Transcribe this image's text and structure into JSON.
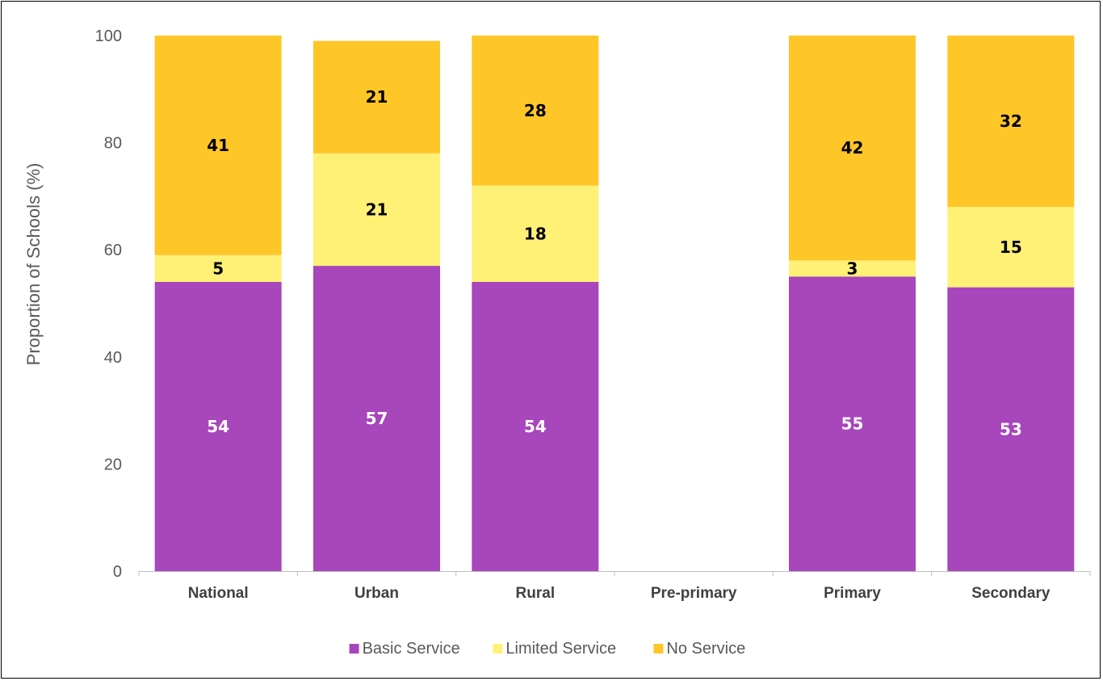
{
  "chart_data": {
    "type": "bar",
    "stacked": true,
    "ylabel": "Proportion of Schools (%)",
    "xlabel": "",
    "ylim": [
      0,
      100
    ],
    "yticks": [
      0,
      20,
      40,
      60,
      80,
      100
    ],
    "grid": false,
    "legend_position": "bottom",
    "categories": [
      "National",
      "Urban",
      "Rural",
      "Pre-primary",
      "Primary",
      "Secondary"
    ],
    "series": [
      {
        "name": "Basic Service",
        "color": "#a846bb",
        "label_color": "#ffffff",
        "values": [
          54,
          57,
          54,
          null,
          55,
          53
        ]
      },
      {
        "name": "Limited Service",
        "color": "#fff176",
        "label_color": "#000000",
        "values": [
          5,
          21,
          18,
          null,
          3,
          15
        ]
      },
      {
        "name": "No Service",
        "color": "#ffc628",
        "label_color": "#000000",
        "values": [
          41,
          21,
          28,
          null,
          42,
          32
        ]
      }
    ]
  }
}
